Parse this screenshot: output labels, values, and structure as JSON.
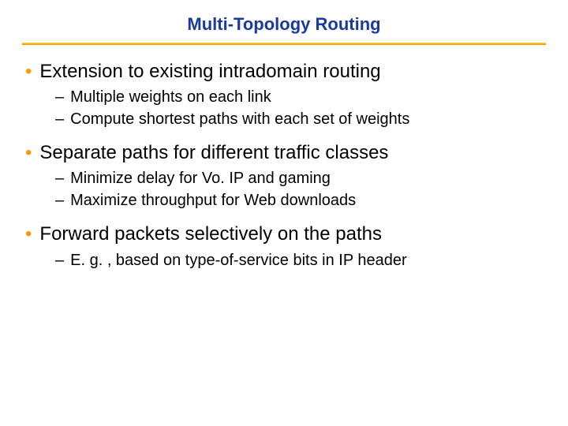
{
  "slide": {
    "title": "Multi-Topology Routing",
    "title_color": "#1a3a9e",
    "title_fontsize": 22,
    "title_fontweight": "bold",
    "divider_colors": [
      "#ffcc33",
      "#ff9900"
    ],
    "bullet_dot_color": "#ff9900",
    "main_text_color": "#000000",
    "sub_text_color": "#000000",
    "main_fontsize": 24,
    "sub_fontsize": 20,
    "background_color": "#ffffff",
    "sections": [
      {
        "main": "Extension to existing intradomain routing",
        "subs": [
          "Multiple weights on each link",
          "Compute shortest paths with each set of weights"
        ]
      },
      {
        "main": "Separate paths for different traffic classes",
        "subs": [
          "Minimize delay for Vo. IP and gaming",
          "Maximize throughput for Web downloads"
        ]
      },
      {
        "main": "Forward packets selectively on the paths",
        "subs": [
          "E. g. , based on type-of-service bits in IP header"
        ]
      }
    ]
  }
}
